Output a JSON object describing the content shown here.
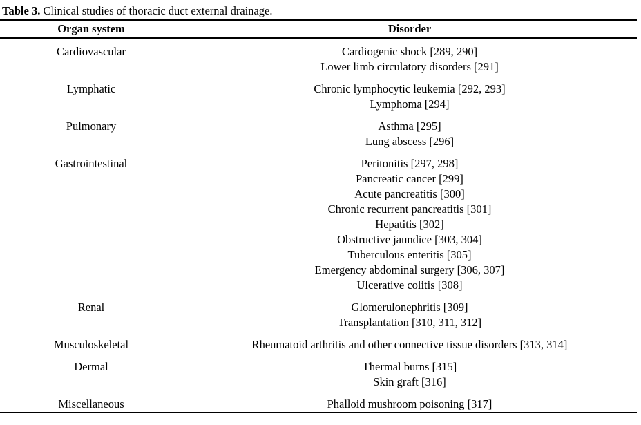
{
  "caption": {
    "label": "Table 3.",
    "text": "Clinical studies of thoracic duct external drainage."
  },
  "table": {
    "columns": [
      "Organ system",
      "Disorder"
    ],
    "groups": [
      {
        "organ_system": "Cardiovascular",
        "disorders": [
          "Cardiogenic shock [289, 290]",
          "Lower limb circulatory disorders [291]"
        ]
      },
      {
        "organ_system": "Lymphatic",
        "disorders": [
          "Chronic lymphocytic leukemia [292, 293]",
          "Lymphoma [294]"
        ]
      },
      {
        "organ_system": "Pulmonary",
        "disorders": [
          "Asthma [295]",
          "Lung abscess [296]"
        ]
      },
      {
        "organ_system": "Gastrointestinal",
        "disorders": [
          "Peritonitis [297, 298]",
          "Pancreatic cancer [299]",
          "Acute pancreatitis [300]",
          "Chronic recurrent pancreatitis [301]",
          "Hepatitis [302]",
          "Obstructive jaundice [303, 304]",
          "Tuberculous enteritis [305]",
          "Emergency abdominal surgery [306, 307]",
          "Ulcerative colitis [308]"
        ]
      },
      {
        "organ_system": "Renal",
        "disorders": [
          "Glomerulonephritis [309]",
          "Transplantation [310, 311, 312]"
        ]
      },
      {
        "organ_system": "Musculoskeletal",
        "disorders": [
          "Rheumatoid arthritis and other connective tissue disorders [313, 314]"
        ]
      },
      {
        "organ_system": "Dermal",
        "disorders": [
          "Thermal burns [315]",
          "Skin graft [316]"
        ]
      },
      {
        "organ_system": "Miscellaneous",
        "disorders": [
          "Phalloid mushroom poisoning [317]"
        ]
      }
    ]
  },
  "colors": {
    "text": "#000000",
    "background": "#ffffff",
    "rule": "#000000"
  }
}
